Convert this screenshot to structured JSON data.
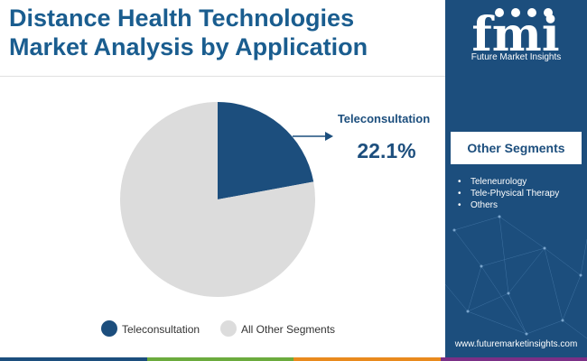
{
  "header": {
    "title_line1": "Distance Health Technologies",
    "title_line2": "Market Analysis by Application"
  },
  "brand": {
    "logo_letters": "fmi",
    "name": "Future Market Insights",
    "website": "www.futuremarketinsights.com"
  },
  "sidebar": {
    "heading": "Other Segments",
    "items": [
      "Teleneurology",
      "Tele-Physical Therapy",
      "Others"
    ]
  },
  "chart_data": {
    "type": "pie",
    "slices": [
      {
        "label": "Teleconsultation",
        "value": 22.1,
        "color": "#1c4e7d"
      },
      {
        "label": "All Other Segments",
        "value": 77.9,
        "color": "#dcdcdc"
      }
    ],
    "annotation": {
      "label": "Teleconsultation",
      "value_text": "22.1%"
    },
    "legend": {
      "placement": "bottom",
      "entries": [
        "Teleconsultation",
        "All Other Segments"
      ]
    }
  },
  "stripe_colors": [
    "#1c4e7d",
    "#6bab3d",
    "#e98a1d",
    "#7b2f86"
  ]
}
